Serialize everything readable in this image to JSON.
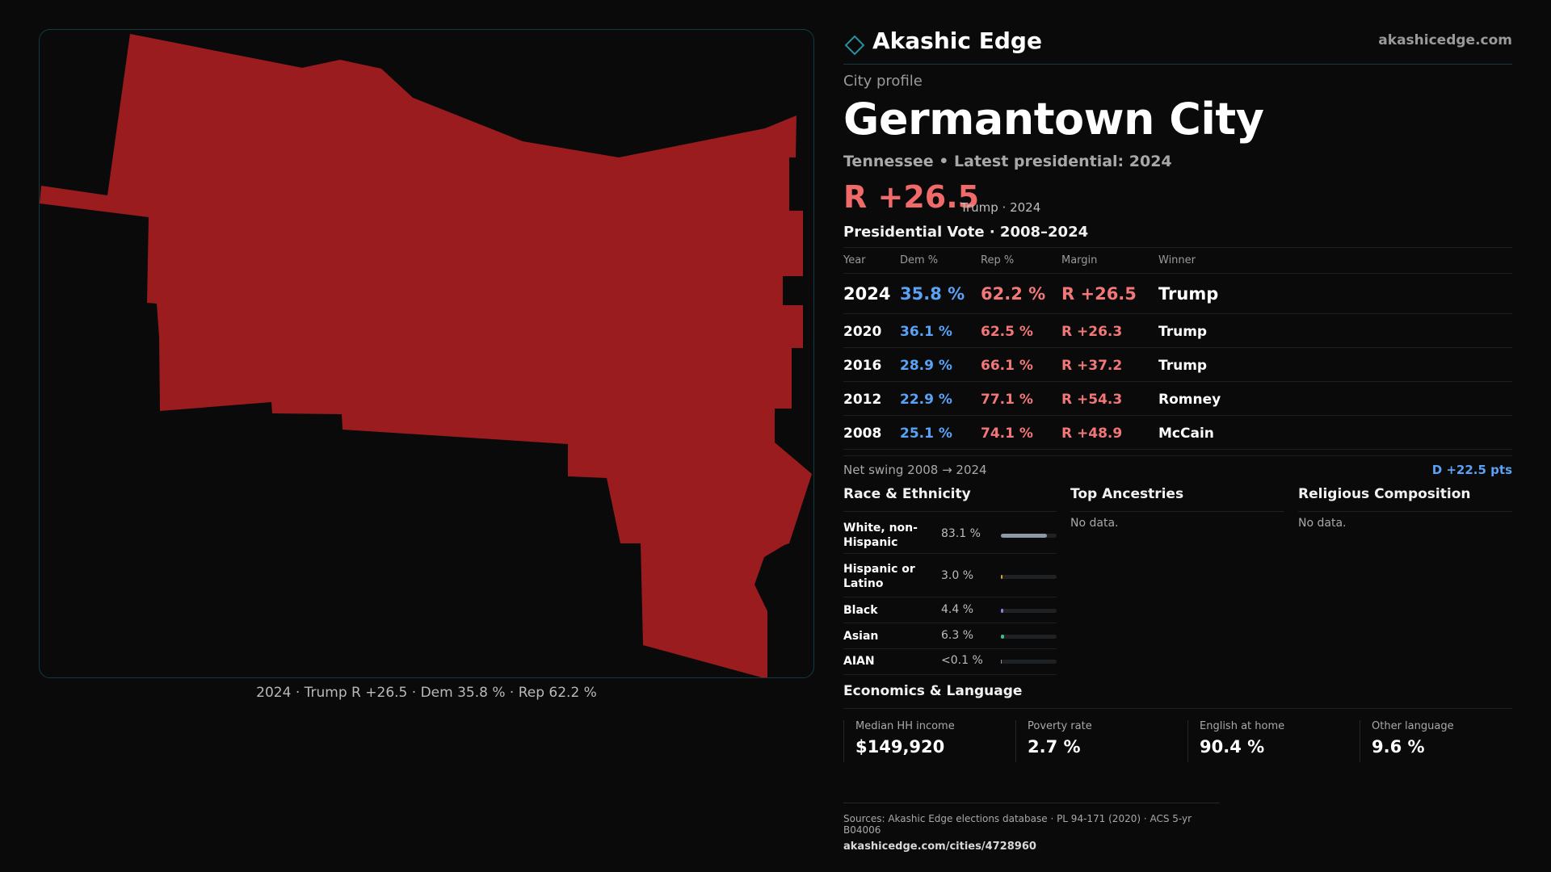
{
  "brand": {
    "name": "Akashic Edge",
    "url": "akashicedge.com"
  },
  "profile": {
    "eyebrow": "City profile",
    "title": "Germantown City",
    "subtitle": "Tennessee • Latest presidential: 2024",
    "headline_margin": "R +26.5",
    "headline_note": "Trump · 2024"
  },
  "map": {
    "caption": "2024 · Trump R +26.5 · Dem 35.8 % · Rep 62.2 %",
    "fill_color": "#9b1c1f"
  },
  "vote": {
    "title": "Presidential Vote · 2008–2024",
    "headers": {
      "year": "Year",
      "dem": "Dem %",
      "rep": "Rep %",
      "margin": "Margin",
      "winner": "Winner"
    },
    "rows": [
      {
        "year": "2024",
        "dem": "35.8 %",
        "rep": "62.2 %",
        "margin": "R +26.5",
        "winner": "Trump"
      },
      {
        "year": "2020",
        "dem": "36.1 %",
        "rep": "62.5 %",
        "margin": "R +26.3",
        "winner": "Trump"
      },
      {
        "year": "2016",
        "dem": "28.9 %",
        "rep": "66.1 %",
        "margin": "R +37.2",
        "winner": "Trump"
      },
      {
        "year": "2012",
        "dem": "22.9 %",
        "rep": "77.1 %",
        "margin": "R +54.3",
        "winner": "Romney"
      },
      {
        "year": "2008",
        "dem": "25.1 %",
        "rep": "74.1 %",
        "margin": "R +48.9",
        "winner": "McCain"
      }
    ],
    "swing_label": "Net swing 2008 → 2024",
    "swing_value": "D +22.5 pts"
  },
  "race": {
    "title": "Race & Ethnicity",
    "rows": [
      {
        "label": "White, non-Hispanic",
        "pct": "83.1 %",
        "value": 83.1,
        "color": "#8d98a8"
      },
      {
        "label": "Hispanic or Latino",
        "pct": "3.0 %",
        "value": 3.0,
        "color": "#e0a030"
      },
      {
        "label": "Black",
        "pct": "4.4 %",
        "value": 4.4,
        "color": "#8f7ce8"
      },
      {
        "label": "Asian",
        "pct": "6.3 %",
        "value": 6.3,
        "color": "#3cc08a"
      },
      {
        "label": "AIAN",
        "pct": "<0.1 %",
        "value": 0.05,
        "color": "#8d98a8"
      }
    ]
  },
  "ancestries": {
    "title": "Top Ancestries",
    "empty": "No data."
  },
  "religion": {
    "title": "Religious Composition",
    "empty": "No data."
  },
  "economics": {
    "title": "Economics & Language",
    "items": [
      {
        "label": "Median HH income",
        "value": "$149,920"
      },
      {
        "label": "Poverty rate",
        "value": "2.7 %"
      },
      {
        "label": "English at home",
        "value": "90.4 %"
      },
      {
        "label": "Other language",
        "value": "9.6 %"
      }
    ]
  },
  "footer": {
    "sources": "Sources: Akashic Edge elections database · PL 94-171 (2020) · ACS 5-yr B04006",
    "url": "akashicedge.com/cities/4728960"
  }
}
